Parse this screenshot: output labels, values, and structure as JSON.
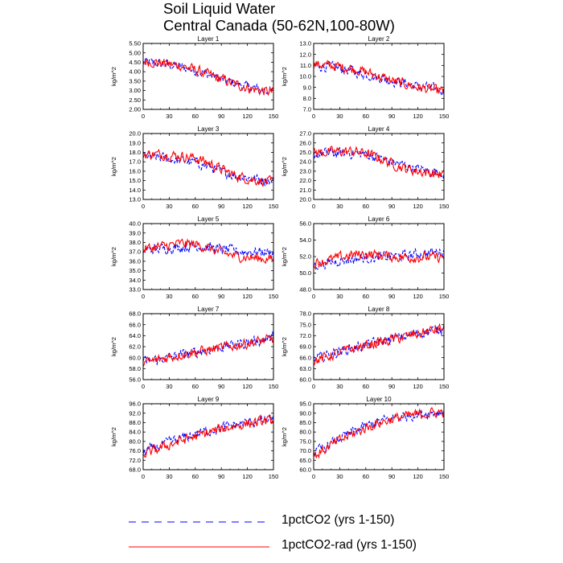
{
  "title": {
    "line1": "Soil Liquid Water",
    "line2": "Central Canada (50-62N,100-80W)"
  },
  "colors": {
    "series_a": "#0000ff",
    "series_b": "#ff0000"
  },
  "legend": [
    {
      "label": "1pctCO2 (yrs 1-150)",
      "color": "#0000ff",
      "dash": "dashed"
    },
    {
      "label": "1pctCO2-rad (yrs 1-150)",
      "color": "#ff0000",
      "dash": "solid"
    }
  ],
  "chart_data": [
    {
      "type": "line",
      "title": "Layer 1",
      "ylabel": "kg/m^2",
      "xlim": [
        0,
        150
      ],
      "ylim": [
        2.0,
        5.5
      ],
      "xticks": [
        0,
        30,
        60,
        90,
        120,
        150
      ],
      "yticks": [
        "2.00",
        "2.50",
        "3.00",
        "3.50",
        "4.00",
        "4.50",
        "5.00",
        "5.50"
      ],
      "series": [
        {
          "name": "1pctCO2 (yrs 1-150)",
          "color": "#0000ff",
          "dash": "dashed",
          "x": [
            0,
            15,
            30,
            45,
            60,
            75,
            90,
            105,
            120,
            135,
            150
          ],
          "y": [
            4.5,
            4.45,
            4.35,
            4.25,
            4.05,
            3.85,
            3.6,
            3.4,
            3.2,
            3.05,
            2.95
          ]
        },
        {
          "name": "1pctCO2-rad (yrs 1-150)",
          "color": "#ff0000",
          "dash": "solid",
          "x": [
            0,
            15,
            30,
            45,
            60,
            75,
            90,
            105,
            120,
            135,
            150
          ],
          "y": [
            4.55,
            4.5,
            4.4,
            4.3,
            4.1,
            3.85,
            3.6,
            3.35,
            3.15,
            3.0,
            2.9
          ]
        }
      ]
    },
    {
      "type": "line",
      "title": "Layer 2",
      "ylabel": "kg/m^2",
      "xlim": [
        0,
        150
      ],
      "ylim": [
        7.0,
        13.0
      ],
      "xticks": [
        0,
        30,
        60,
        90,
        120,
        150
      ],
      "yticks": [
        "7.0",
        "8.0",
        "9.0",
        "10.0",
        "11.0",
        "12.0",
        "13.0"
      ],
      "series": [
        {
          "name": "1pctCO2 (yrs 1-150)",
          "color": "#0000ff",
          "dash": "dashed",
          "x": [
            0,
            15,
            30,
            45,
            60,
            75,
            90,
            105,
            120,
            135,
            150
          ],
          "y": [
            11.0,
            10.9,
            10.7,
            10.5,
            10.2,
            9.9,
            9.6,
            9.4,
            9.1,
            8.9,
            8.7
          ]
        },
        {
          "name": "1pctCO2-rad (yrs 1-150)",
          "color": "#ff0000",
          "dash": "solid",
          "x": [
            0,
            15,
            30,
            45,
            60,
            75,
            90,
            105,
            120,
            135,
            150
          ],
          "y": [
            11.1,
            11.0,
            10.9,
            10.7,
            10.4,
            10.0,
            9.6,
            9.3,
            9.0,
            8.8,
            8.6
          ]
        }
      ]
    },
    {
      "type": "line",
      "title": "Layer 3",
      "ylabel": "kg/m^2",
      "xlim": [
        0,
        150
      ],
      "ylim": [
        13.0,
        20.0
      ],
      "xticks": [
        0,
        30,
        60,
        90,
        120,
        150
      ],
      "yticks": [
        "13.0",
        "14.0",
        "15.0",
        "16.0",
        "17.0",
        "18.0",
        "19.0",
        "20.0"
      ],
      "series": [
        {
          "name": "1pctCO2 (yrs 1-150)",
          "color": "#0000ff",
          "dash": "dashed",
          "x": [
            0,
            15,
            30,
            45,
            60,
            75,
            90,
            105,
            120,
            135,
            150
          ],
          "y": [
            17.6,
            17.5,
            17.3,
            17.1,
            16.9,
            16.5,
            16.0,
            15.6,
            15.3,
            15.1,
            15.0
          ]
        },
        {
          "name": "1pctCO2-rad (yrs 1-150)",
          "color": "#ff0000",
          "dash": "solid",
          "x": [
            0,
            15,
            30,
            45,
            60,
            75,
            90,
            105,
            120,
            135,
            150
          ],
          "y": [
            17.8,
            17.8,
            17.7,
            17.6,
            17.4,
            16.9,
            16.2,
            15.6,
            15.2,
            15.0,
            14.8
          ]
        }
      ]
    },
    {
      "type": "line",
      "title": "Layer 4",
      "ylabel": "kg/m^2",
      "xlim": [
        0,
        150
      ],
      "ylim": [
        20.0,
        27.0
      ],
      "xticks": [
        0,
        30,
        60,
        90,
        120,
        150
      ],
      "yticks": [
        "20.0",
        "21.0",
        "22.0",
        "23.0",
        "24.0",
        "25.0",
        "26.0",
        "27.0"
      ],
      "series": [
        {
          "name": "1pctCO2 (yrs 1-150)",
          "color": "#0000ff",
          "dash": "dashed",
          "x": [
            0,
            15,
            30,
            45,
            60,
            75,
            90,
            105,
            120,
            135,
            150
          ],
          "y": [
            24.8,
            24.9,
            24.9,
            24.9,
            24.8,
            24.4,
            24.0,
            23.6,
            23.2,
            23.0,
            22.8
          ]
        },
        {
          "name": "1pctCO2-rad (yrs 1-150)",
          "color": "#ff0000",
          "dash": "solid",
          "x": [
            0,
            15,
            30,
            45,
            60,
            75,
            90,
            105,
            120,
            135,
            150
          ],
          "y": [
            25.0,
            25.0,
            25.1,
            25.1,
            24.9,
            24.4,
            23.8,
            23.3,
            23.0,
            22.8,
            22.6
          ]
        }
      ]
    },
    {
      "type": "line",
      "title": "Layer 5",
      "ylabel": "kg/m^2",
      "xlim": [
        0,
        150
      ],
      "ylim": [
        33.0,
        40.0
      ],
      "xticks": [
        0,
        30,
        60,
        90,
        120,
        150
      ],
      "yticks": [
        "33.0",
        "34.0",
        "35.0",
        "36.0",
        "37.0",
        "38.0",
        "39.0",
        "40.0"
      ],
      "series": [
        {
          "name": "1pctCO2 (yrs 1-150)",
          "color": "#0000ff",
          "dash": "dashed",
          "x": [
            0,
            15,
            30,
            45,
            60,
            75,
            90,
            105,
            120,
            135,
            150
          ],
          "y": [
            37.2,
            37.3,
            37.4,
            37.5,
            37.6,
            37.5,
            37.3,
            37.1,
            37.0,
            37.0,
            36.9
          ]
        },
        {
          "name": "1pctCO2-rad (yrs 1-150)",
          "color": "#ff0000",
          "dash": "solid",
          "x": [
            0,
            15,
            30,
            45,
            60,
            75,
            90,
            105,
            120,
            135,
            150
          ],
          "y": [
            37.3,
            37.5,
            37.7,
            37.9,
            37.8,
            37.4,
            36.9,
            36.6,
            36.4,
            36.3,
            36.2
          ]
        }
      ]
    },
    {
      "type": "line",
      "title": "Layer 6",
      "ylabel": "kg/m^2",
      "xlim": [
        0,
        150
      ],
      "ylim": [
        48.0,
        56.0
      ],
      "xticks": [
        0,
        30,
        60,
        90,
        120,
        150
      ],
      "yticks": [
        "48.0",
        "50.0",
        "52.0",
        "54.0",
        "56.0"
      ],
      "series": [
        {
          "name": "1pctCO2 (yrs 1-150)",
          "color": "#0000ff",
          "dash": "dashed",
          "x": [
            0,
            15,
            30,
            45,
            60,
            75,
            90,
            105,
            120,
            135,
            150
          ],
          "y": [
            51.0,
            51.2,
            51.5,
            51.7,
            51.8,
            51.9,
            52.0,
            52.1,
            52.3,
            52.5,
            52.6
          ]
        },
        {
          "name": "1pctCO2-rad (yrs 1-150)",
          "color": "#ff0000",
          "dash": "solid",
          "x": [
            0,
            15,
            30,
            45,
            60,
            75,
            90,
            105,
            120,
            135,
            150
          ],
          "y": [
            51.2,
            51.5,
            51.9,
            52.2,
            52.3,
            52.2,
            52.0,
            51.9,
            51.9,
            51.9,
            51.9
          ]
        }
      ]
    },
    {
      "type": "line",
      "title": "Layer 7",
      "ylabel": "kg/m^2",
      "xlim": [
        0,
        150
      ],
      "ylim": [
        56.0,
        68.0
      ],
      "xticks": [
        0,
        30,
        60,
        90,
        120,
        150
      ],
      "yticks": [
        "56.0",
        "58.0",
        "60.0",
        "62.0",
        "64.0",
        "66.0",
        "68.0"
      ],
      "series": [
        {
          "name": "1pctCO2 (yrs 1-150)",
          "color": "#0000ff",
          "dash": "dashed",
          "x": [
            0,
            15,
            30,
            45,
            60,
            75,
            90,
            105,
            120,
            135,
            150
          ],
          "y": [
            59.2,
            59.6,
            60.0,
            60.5,
            61.0,
            61.5,
            61.9,
            62.3,
            62.8,
            63.2,
            63.6
          ]
        },
        {
          "name": "1pctCO2-rad (yrs 1-150)",
          "color": "#ff0000",
          "dash": "solid",
          "x": [
            0,
            15,
            30,
            45,
            60,
            75,
            90,
            105,
            120,
            135,
            150
          ],
          "y": [
            59.0,
            59.5,
            60.1,
            60.6,
            61.0,
            61.4,
            61.8,
            62.2,
            62.6,
            63.0,
            63.4
          ]
        }
      ]
    },
    {
      "type": "line",
      "title": "Layer 8",
      "ylabel": "kg/m^2",
      "xlim": [
        0,
        150
      ],
      "ylim": [
        60.0,
        78.0
      ],
      "xticks": [
        0,
        30,
        60,
        90,
        120,
        150
      ],
      "yticks": [
        "60.0",
        "63.0",
        "66.0",
        "69.0",
        "72.0",
        "75.0",
        "78.0"
      ],
      "series": [
        {
          "name": "1pctCO2 (yrs 1-150)",
          "color": "#0000ff",
          "dash": "dashed",
          "x": [
            0,
            15,
            30,
            45,
            60,
            75,
            90,
            105,
            120,
            135,
            150
          ],
          "y": [
            65.5,
            66.6,
            67.7,
            68.6,
            69.4,
            70.2,
            71.0,
            71.8,
            72.6,
            73.4,
            74.0
          ]
        },
        {
          "name": "1pctCO2-rad (yrs 1-150)",
          "color": "#ff0000",
          "dash": "solid",
          "x": [
            0,
            15,
            30,
            45,
            60,
            75,
            90,
            105,
            120,
            135,
            150
          ],
          "y": [
            65.0,
            66.2,
            67.4,
            68.4,
            69.3,
            70.1,
            70.9,
            71.7,
            72.5,
            73.3,
            74.0
          ]
        }
      ]
    },
    {
      "type": "line",
      "title": "Layer 9",
      "ylabel": "kg/m^2",
      "xlim": [
        0,
        150
      ],
      "ylim": [
        68.0,
        96.0
      ],
      "xticks": [
        0,
        30,
        60,
        90,
        120,
        150
      ],
      "yticks": [
        "68.0",
        "72.0",
        "76.0",
        "80.0",
        "84.0",
        "88.0",
        "92.0",
        "96.0"
      ],
      "series": [
        {
          "name": "1pctCO2 (yrs 1-150)",
          "color": "#0000ff",
          "dash": "dashed",
          "x": [
            0,
            15,
            30,
            45,
            60,
            75,
            90,
            105,
            120,
            135,
            150
          ],
          "y": [
            75.5,
            77.5,
            79.5,
            81.5,
            83.0,
            84.5,
            85.8,
            87.0,
            88.0,
            88.6,
            89.0
          ]
        },
        {
          "name": "1pctCO2-rad (yrs 1-150)",
          "color": "#ff0000",
          "dash": "solid",
          "x": [
            0,
            15,
            30,
            45,
            60,
            75,
            90,
            105,
            120,
            135,
            150
          ],
          "y": [
            74.5,
            76.5,
            78.5,
            80.5,
            82.2,
            83.8,
            85.2,
            86.5,
            87.6,
            88.4,
            89.0
          ]
        }
      ]
    },
    {
      "type": "line",
      "title": "Layer 10",
      "ylabel": "kg/m^2",
      "xlim": [
        0,
        150
      ],
      "ylim": [
        60.0,
        95.0
      ],
      "xticks": [
        0,
        30,
        60,
        90,
        120,
        150
      ],
      "yticks": [
        "60.0",
        "65.0",
        "70.0",
        "75.0",
        "80.0",
        "85.0",
        "90.0",
        "95.0"
      ],
      "series": [
        {
          "name": "1pctCO2 (yrs 1-150)",
          "color": "#0000ff",
          "dash": "dashed",
          "x": [
            0,
            15,
            30,
            45,
            60,
            75,
            90,
            105,
            120,
            135,
            150
          ],
          "y": [
            68.5,
            72.5,
            76.5,
            80.0,
            83.0,
            85.5,
            87.3,
            88.5,
            89.5,
            90.2,
            90.8
          ]
        },
        {
          "name": "1pctCO2-rad (yrs 1-150)",
          "color": "#ff0000",
          "dash": "solid",
          "x": [
            0,
            15,
            30,
            45,
            60,
            75,
            90,
            105,
            120,
            135,
            150
          ],
          "y": [
            67.0,
            71.5,
            75.5,
            79.0,
            82.2,
            84.8,
            86.8,
            88.2,
            89.3,
            90.1,
            90.7
          ]
        }
      ]
    }
  ]
}
